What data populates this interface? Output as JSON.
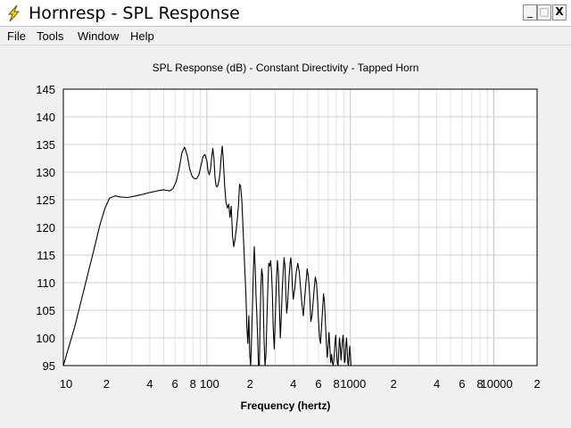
{
  "window": {
    "title": "Hornresp - SPL Response",
    "app_icon": "lightning-icon",
    "controls": {
      "minimize": "_",
      "maximize": "□",
      "close": "X"
    }
  },
  "menu": {
    "items": [
      {
        "label": "File"
      },
      {
        "label": "Tools"
      },
      {
        "label": "Window"
      },
      {
        "label": "Help"
      }
    ]
  },
  "chart_data": {
    "type": "line",
    "title": "SPL Response (dB) - Constant Directivity - Tapped Horn",
    "xlabel": "Frequency (hertz)",
    "ylabel": "",
    "x_scale": "log",
    "xlim": [
      10,
      20000
    ],
    "ylim": [
      95,
      145
    ],
    "y_ticks": [
      95,
      100,
      105,
      110,
      115,
      120,
      125,
      130,
      135,
      140,
      145
    ],
    "x_ticks": [
      {
        "value": 10,
        "label": "10"
      },
      {
        "value": 20,
        "label": "2"
      },
      {
        "value": 40,
        "label": "4"
      },
      {
        "value": 60,
        "label": "6"
      },
      {
        "value": 80,
        "label": "8"
      },
      {
        "value": 100,
        "label": "100"
      },
      {
        "value": 200,
        "label": "2"
      },
      {
        "value": 400,
        "label": "4"
      },
      {
        "value": 600,
        "label": "6"
      },
      {
        "value": 800,
        "label": "8"
      },
      {
        "value": 1000,
        "label": "1000"
      },
      {
        "value": 2000,
        "label": "2"
      },
      {
        "value": 4000,
        "label": "4"
      },
      {
        "value": 6000,
        "label": "6"
      },
      {
        "value": 8000,
        "label": "8"
      },
      {
        "value": 10000,
        "label": "10000"
      },
      {
        "value": 20000,
        "label": "2"
      }
    ],
    "grid": true,
    "line_color": "#000000",
    "series": [
      {
        "x": [
          10,
          12,
          14,
          16,
          18,
          19.5,
          21,
          23,
          25,
          28,
          32,
          36,
          40,
          45,
          50,
          52,
          55,
          58,
          61,
          64,
          67,
          70,
          73,
          76,
          79,
          82,
          85,
          88,
          91,
          94,
          97,
          100,
          102,
          104,
          106,
          108,
          110,
          112,
          114,
          116,
          118,
          120,
          122,
          124,
          126,
          128,
          130,
          133,
          136,
          139,
          142,
          145,
          148,
          151,
          154,
          157,
          160,
          163,
          166,
          169,
          172,
          175,
          178,
          181,
          184,
          187,
          190,
          193,
          196,
          199,
          202,
          205,
          208,
          211,
          214,
          217,
          220,
          223,
          226,
          229,
          232,
          235,
          238,
          241,
          244,
          247,
          250,
          254,
          258,
          262,
          266,
          270,
          274,
          278,
          282,
          286,
          290,
          295,
          300,
          305,
          310,
          315,
          320,
          325,
          330,
          335,
          340,
          345,
          350,
          355,
          360,
          365,
          370,
          375,
          380,
          385,
          390,
          395,
          400,
          410,
          420,
          430,
          440,
          450,
          460,
          470,
          480,
          490,
          500,
          510,
          520,
          530,
          540,
          550,
          560,
          570,
          580,
          590,
          600,
          610,
          620,
          630,
          640,
          650,
          660,
          670,
          680,
          690,
          700,
          710,
          720,
          730,
          740,
          750,
          760,
          770,
          780,
          790,
          800,
          810,
          820,
          830,
          840,
          850,
          860,
          870,
          880,
          890,
          900,
          910,
          920,
          930,
          940,
          950,
          960,
          970,
          980,
          990,
          1000,
          1010
        ],
        "y": [
          95,
          102,
          109,
          115,
          120.5,
          123.5,
          125.3,
          125.7,
          125.5,
          125.4,
          125.7,
          126,
          126.3,
          126.6,
          126.8,
          126.7,
          126.6,
          127,
          128.2,
          130.5,
          133.5,
          134.5,
          133,
          130.5,
          129.2,
          128.8,
          128.8,
          129.5,
          131.2,
          132.8,
          133.2,
          132,
          130.2,
          129.5,
          130.5,
          132.5,
          134.3,
          132.5,
          129,
          127.5,
          127.3,
          127.8,
          128.8,
          130.5,
          133,
          134.7,
          132.5,
          127.5,
          124.5,
          123.5,
          124.2,
          121.8,
          123.8,
          118.5,
          116.5,
          117.8,
          119.5,
          121.5,
          124,
          127.8,
          127.5,
          125,
          121,
          116.5,
          112,
          108,
          102,
          99,
          104,
          97,
          95,
          100,
          106,
          112,
          116.5,
          113,
          108,
          104,
          100,
          95,
          95,
          103,
          109,
          112.5,
          111.5,
          107,
          100,
          95,
          97,
          103,
          109,
          113.5,
          113,
          114,
          112,
          108,
          102,
          98,
          104,
          110,
          114,
          112,
          106,
          100,
          104,
          108.5,
          112,
          114.5,
          113,
          108,
          104.5,
          106,
          109,
          111.5,
          113.5,
          114.5,
          112.5,
          109,
          107,
          109,
          112,
          113.5,
          112,
          109,
          106,
          104,
          107,
          110,
          112.5,
          111,
          108,
          103,
          104,
          106.5,
          109,
          111,
          110,
          107,
          103,
          100,
          99,
          102,
          105,
          108,
          106.5,
          103,
          99,
          96.5,
          98.5,
          101,
          98,
          95.5,
          97,
          95.5,
          95,
          96.5,
          99,
          100.5,
          98,
          95.5,
          95,
          97.5,
          100,
          98.5,
          96,
          97.5,
          99.5,
          100.5,
          98.5,
          95.5,
          96,
          98.5,
          100,
          98,
          95.5,
          95,
          97,
          98.5,
          97,
          95
        ]
      }
    ]
  }
}
